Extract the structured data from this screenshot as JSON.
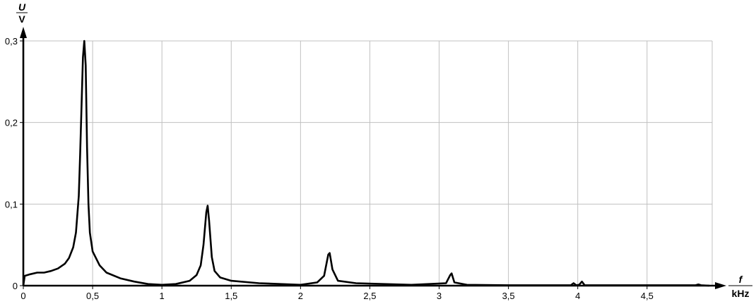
{
  "chart_data": {
    "type": "line",
    "title": "",
    "xlabel": {
      "symbol": "f",
      "unit": "kHz"
    },
    "ylabel": {
      "symbol": "U",
      "unit": "V"
    },
    "xlim": [
      0,
      4.97
    ],
    "ylim": [
      0,
      0.3
    ],
    "grid": true,
    "x_ticks": [
      0,
      0.5,
      1,
      1.5,
      2,
      2.5,
      3,
      3.5,
      4,
      4.5
    ],
    "x_tick_labels": [
      "0",
      "0,5",
      "1",
      "1,5",
      "2",
      "2,5",
      "3",
      "3,5",
      "4",
      "4,5"
    ],
    "y_ticks": [
      0,
      0.1,
      0.2,
      0.3
    ],
    "y_tick_labels": [
      "0",
      "0,1",
      "0,2",
      "0,3"
    ],
    "colors": {
      "line": "#000000",
      "grid": "#c0c0c0"
    },
    "series": [
      {
        "x": [
          0,
          0.01,
          0.05,
          0.1,
          0.15,
          0.2,
          0.25,
          0.3,
          0.33,
          0.36,
          0.38,
          0.4,
          0.41,
          0.42,
          0.43,
          0.44,
          0.45,
          0.46,
          0.47,
          0.48,
          0.5,
          0.55,
          0.6,
          0.7,
          0.8,
          0.9,
          1.0,
          1.1,
          1.2,
          1.25,
          1.28,
          1.3,
          1.32,
          1.33,
          1.34,
          1.36,
          1.38,
          1.42,
          1.5,
          1.7,
          2.0,
          2.12,
          2.17,
          2.2,
          2.21,
          2.23,
          2.27,
          2.4,
          2.8,
          3.05,
          3.08,
          3.09,
          3.11,
          3.2,
          3.5,
          3.95,
          3.97,
          3.99,
          4.01,
          4.03,
          4.05,
          4.85,
          4.87,
          4.89,
          4.95
        ],
        "y": [
          0,
          0.012,
          0.014,
          0.016,
          0.016,
          0.018,
          0.021,
          0.027,
          0.034,
          0.047,
          0.065,
          0.11,
          0.16,
          0.22,
          0.28,
          0.3,
          0.27,
          0.17,
          0.1,
          0.065,
          0.042,
          0.025,
          0.016,
          0.009,
          0.005,
          0.002,
          0.001,
          0.002,
          0.006,
          0.013,
          0.025,
          0.05,
          0.09,
          0.098,
          0.08,
          0.035,
          0.018,
          0.01,
          0.006,
          0.003,
          0.001,
          0.004,
          0.012,
          0.038,
          0.04,
          0.02,
          0.006,
          0.003,
          0.001,
          0.003,
          0.013,
          0.015,
          0.004,
          0.001,
          0.0005,
          0.0005,
          0.003,
          0.0005,
          0.001,
          0.005,
          0.0005,
          0.0005,
          0.0015,
          0.0005,
          0
        ]
      }
    ]
  }
}
